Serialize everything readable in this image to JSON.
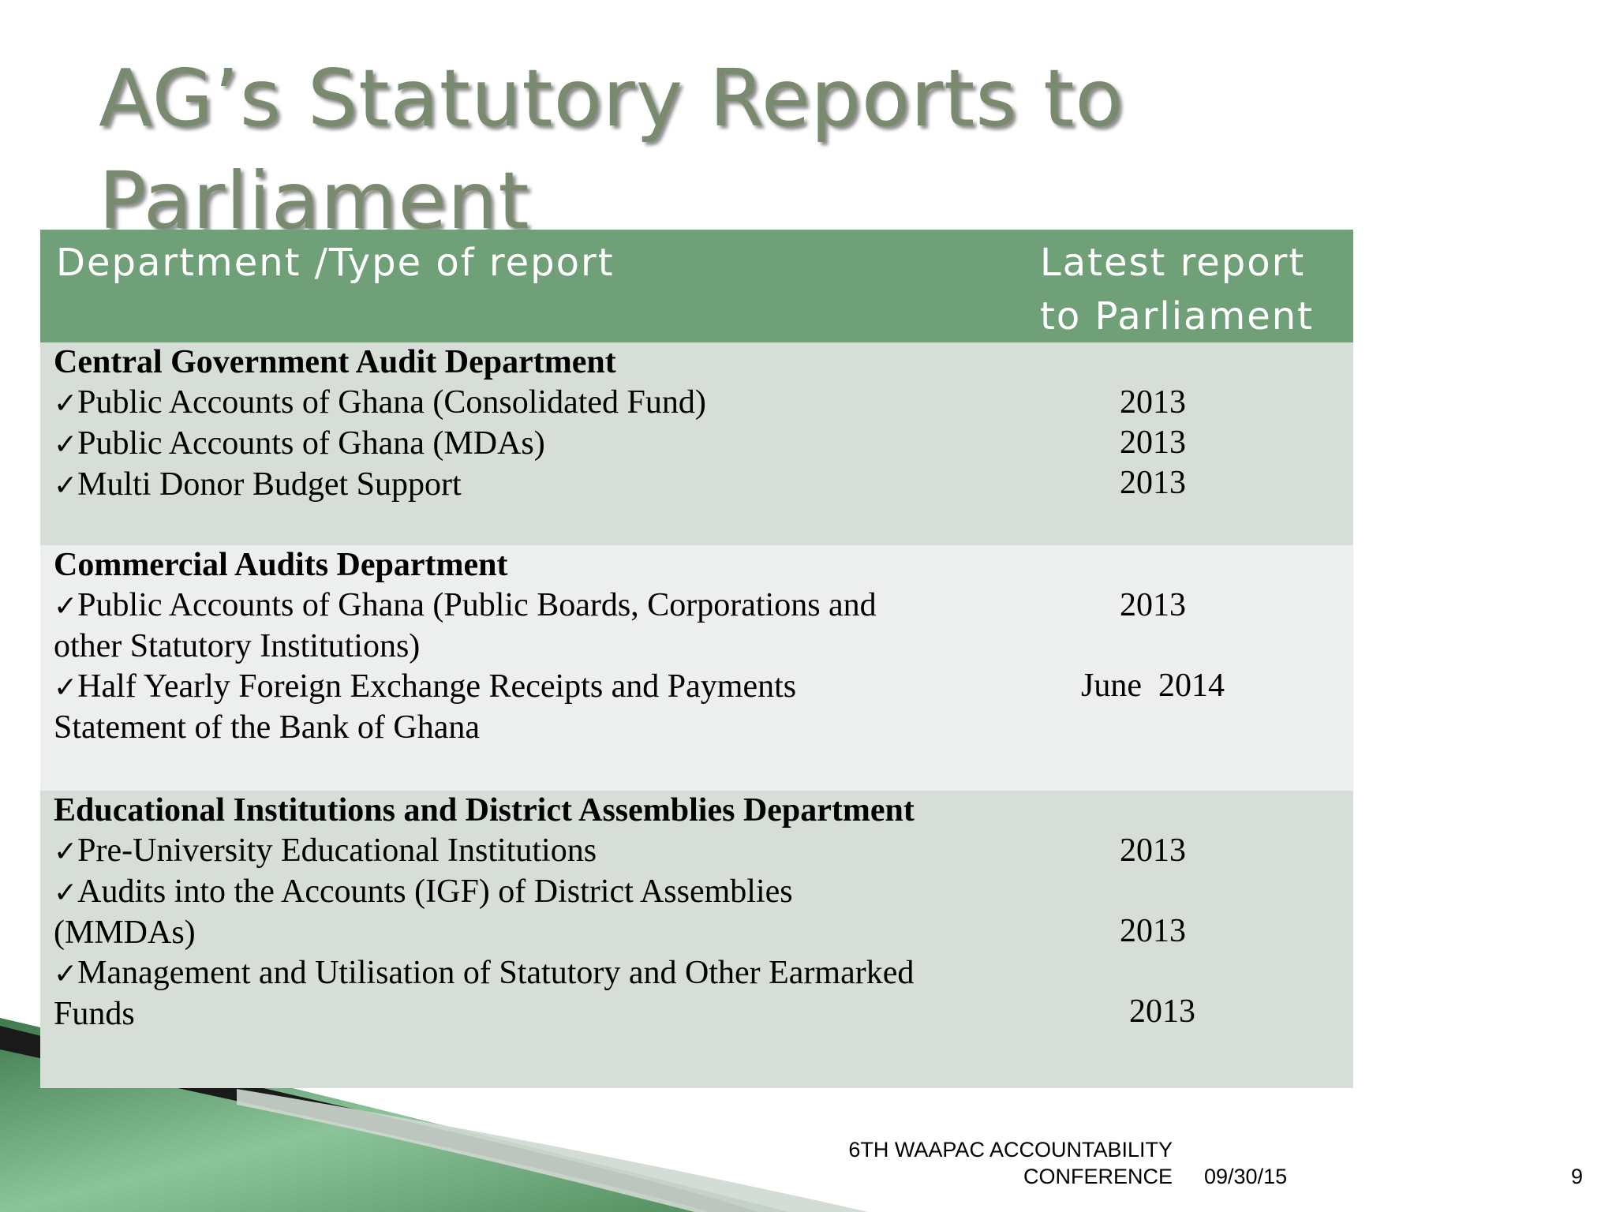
{
  "slide": {
    "title_line1": "AG’s Statutory Reports to",
    "title_line2": "Parliament"
  },
  "table": {
    "header": {
      "col1": "Department /Type of report",
      "col2_line1": "Latest report",
      "col2_line2": "to Parliament"
    },
    "sections": [
      {
        "heading": "Central Government Audit Department",
        "items": [
          {
            "lines": [
              "Public Accounts of Ghana (Consolidated Fund)"
            ],
            "year": "2013"
          },
          {
            "lines": [
              "Public Accounts of Ghana (MDAs)"
            ],
            "year": "2013"
          },
          {
            "lines": [
              "Multi Donor Budget Support"
            ],
            "year": "2013"
          }
        ]
      },
      {
        "heading": "Commercial Audits Department",
        "items": [
          {
            "lines": [
              "Public Accounts of Ghana (Public Boards, Corporations and",
              "other Statutory Institutions)"
            ],
            "year": "2013"
          },
          {
            "lines": [
              "Half Yearly Foreign Exchange Receipts and Payments",
              "Statement of the Bank of Ghana"
            ],
            "year": "June  2014"
          }
        ]
      },
      {
        "heading": "Educational Institutions and District Assemblies Department",
        "items": [
          {
            "lines": [
              "Pre-University Educational Institutions"
            ],
            "year": "2013"
          },
          {
            "lines": [
              "Audits into the Accounts (IGF) of District Assemblies",
              "(MMDAs)"
            ],
            "year": "2013"
          },
          {
            "lines": [
              "Management and Utilisation of Statutory and Other Earmarked",
              "Funds"
            ],
            "year": "2013"
          }
        ]
      }
    ],
    "check_symbol": "✓"
  },
  "footer": {
    "conference_line1": "6TH  WAAPAC ACCOUNTABILITY",
    "conference_line2": "CONFERENCE",
    "date": "09/30/15",
    "page_number": "9"
  },
  "colors": {
    "header_green": "#70a077",
    "title_gray": "#7a8a6e",
    "row_dark": "#d7ddd7",
    "row_light": "#ecefed"
  }
}
